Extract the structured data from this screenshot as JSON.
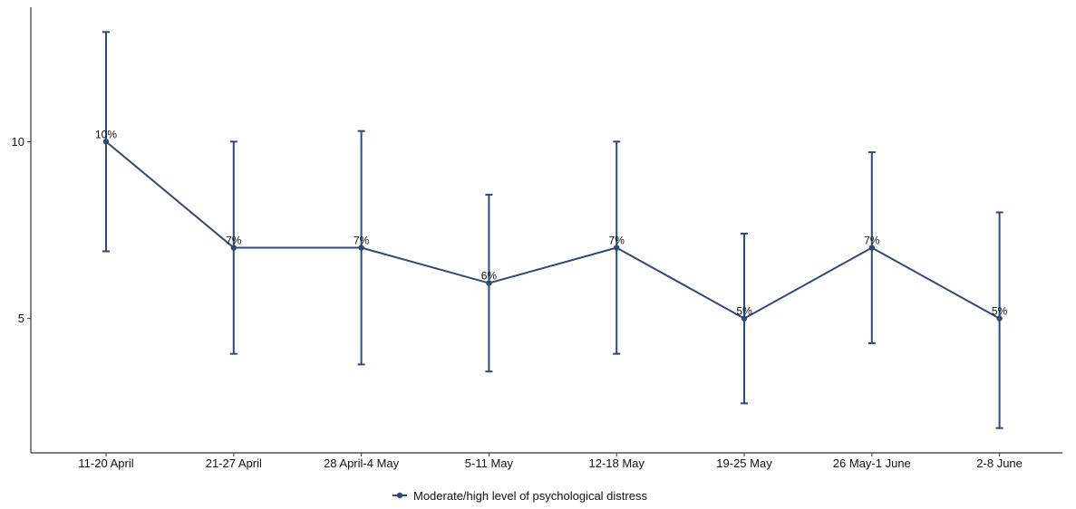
{
  "chart_data": {
    "type": "line",
    "title": "",
    "xlabel": "",
    "ylabel": "",
    "categories": [
      "11-20 April",
      "21-27 April",
      "28 April-4 May",
      "5-11 May",
      "12-18 May",
      "19-25 May",
      "26 May-1 June",
      "2-8 June"
    ],
    "series": [
      {
        "name": "Moderate/high level of psychological distress",
        "values": [
          10,
          7,
          7,
          6,
          7,
          5,
          7,
          5
        ],
        "labels": [
          "10%",
          "7%",
          "7%",
          "6%",
          "7%",
          "5%",
          "7%",
          "5%"
        ],
        "error_low": [
          6.9,
          4.0,
          3.7,
          3.5,
          4.0,
          2.6,
          4.3,
          1.9
        ],
        "error_high": [
          13.1,
          10.0,
          10.3,
          8.5,
          10.0,
          7.4,
          9.7,
          8.0
        ]
      }
    ],
    "y_ticks": [
      5,
      10
    ],
    "ylim": [
      1.2,
      13.8
    ],
    "grid": false,
    "legend_position": "bottom",
    "colors": {
      "line": "#2e4a7d",
      "axis": "#333333",
      "text": "#111111"
    }
  }
}
